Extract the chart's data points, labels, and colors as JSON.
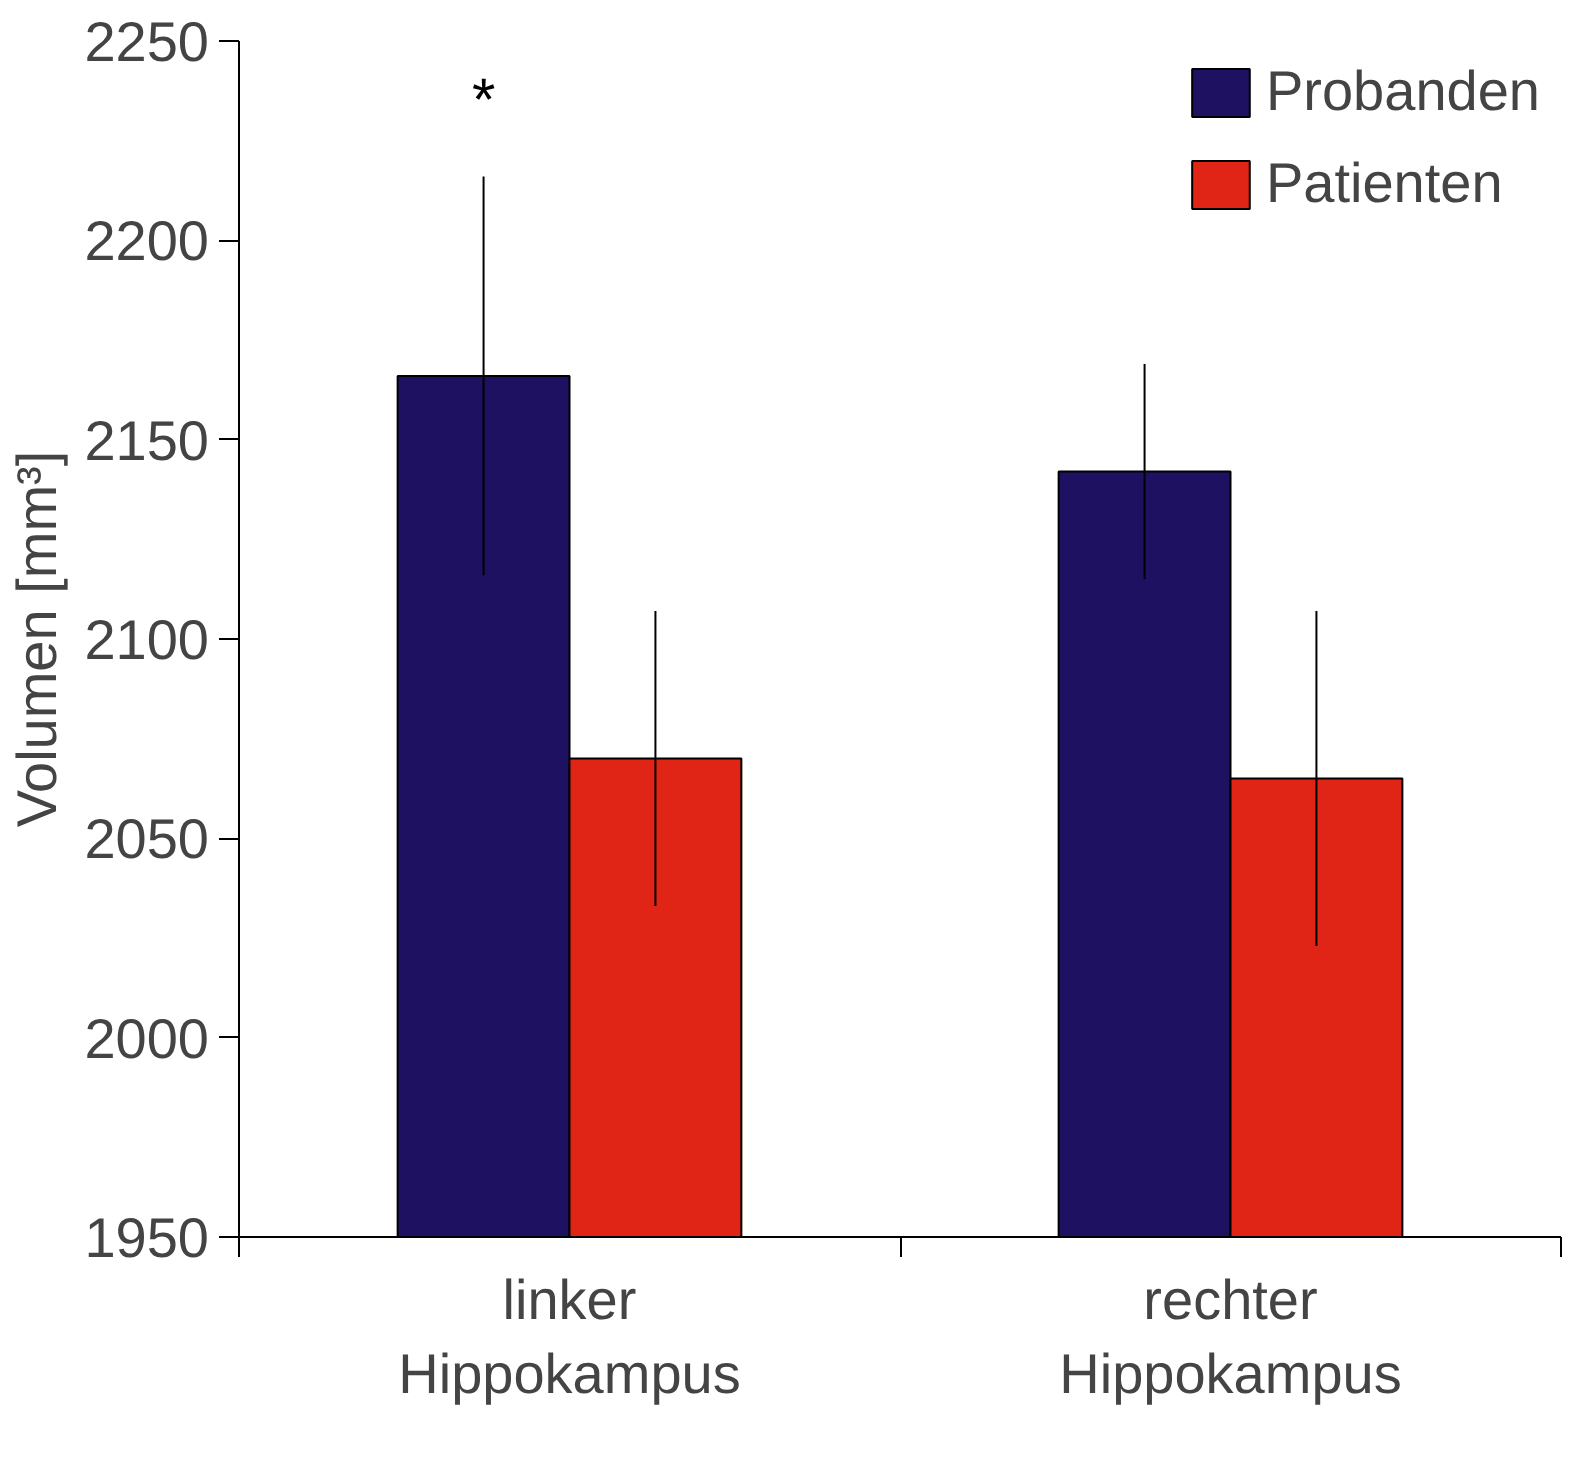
{
  "chart_data": {
    "type": "bar",
    "ylabel": "Volumen [mm³]",
    "categories": [
      "linker\nHippokampus",
      "rechter\nHippokampus"
    ],
    "series": [
      {
        "name": "Probanden",
        "color": "#1f1161",
        "values": [
          2166,
          2142
        ],
        "errors": [
          50,
          27
        ]
      },
      {
        "name": "Patienten",
        "color": "#e02415",
        "values": [
          2070,
          2065
        ],
        "errors": [
          37,
          42
        ]
      }
    ],
    "ylim": [
      1950,
      2250
    ],
    "yticks": [
      1950,
      2000,
      2050,
      2100,
      2150,
      2200,
      2250
    ],
    "annotations": [
      "*"
    ],
    "grid": false,
    "legend": "top right"
  }
}
